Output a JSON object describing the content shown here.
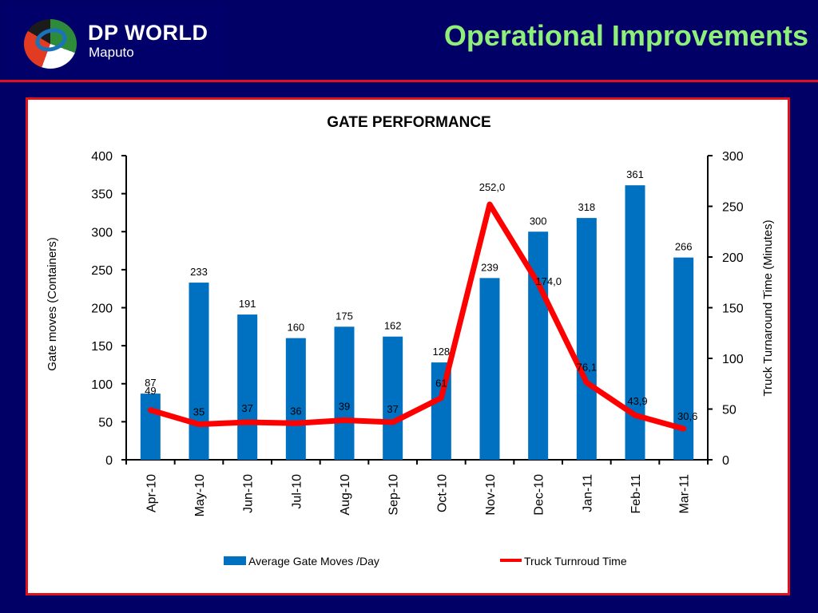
{
  "header": {
    "logo_name": "DP WORLD",
    "logo_sub": "Maputo",
    "title": "Operational Improvements"
  },
  "colors": {
    "background": "#000066",
    "title": "#8ef07a",
    "accent_red": "#e0101e",
    "bar": "#0070c0",
    "line": "#ff0000"
  },
  "chart_data": {
    "type": "bar",
    "title": "GATE PERFORMANCE",
    "categories": [
      "Apr-10",
      "May-10",
      "Jun-10",
      "Jul-10",
      "Aug-10",
      "Sep-10",
      "Oct-10",
      "Nov-10",
      "Dec-10",
      "Jan-11",
      "Feb-11",
      "Mar-11"
    ],
    "series": [
      {
        "name": "Average Gate Moves /Day",
        "type": "bar",
        "axis": "left",
        "values": [
          87,
          233,
          191,
          160,
          175,
          162,
          128,
          239,
          300,
          318,
          361,
          266
        ],
        "labels": [
          "87",
          "233",
          "191",
          "160",
          "175",
          "162",
          "128",
          "239",
          "300",
          "318",
          "361",
          "266"
        ]
      },
      {
        "name": "Truck Turnroud Time",
        "type": "line",
        "axis": "right",
        "values": [
          49,
          35,
          37,
          36,
          39,
          37,
          61,
          252.0,
          174.0,
          76.1,
          43.9,
          30.6
        ],
        "labels": [
          "49",
          "35",
          "37",
          "36",
          "39",
          "37",
          "61",
          "252,0",
          "174,0",
          "76,1",
          "43,9",
          "30,6"
        ]
      }
    ],
    "ylabel": "Gate moves (Containers)",
    "ylim": [
      0,
      400
    ],
    "yticks": [
      0,
      50,
      100,
      150,
      200,
      250,
      300,
      350,
      400
    ],
    "y2label": "Truck Turnaround Time (Minutes)",
    "y2lim": [
      0,
      300
    ],
    "y2ticks": [
      0,
      50,
      100,
      150,
      200,
      250,
      300
    ],
    "grid": false,
    "legend": "bottom"
  }
}
